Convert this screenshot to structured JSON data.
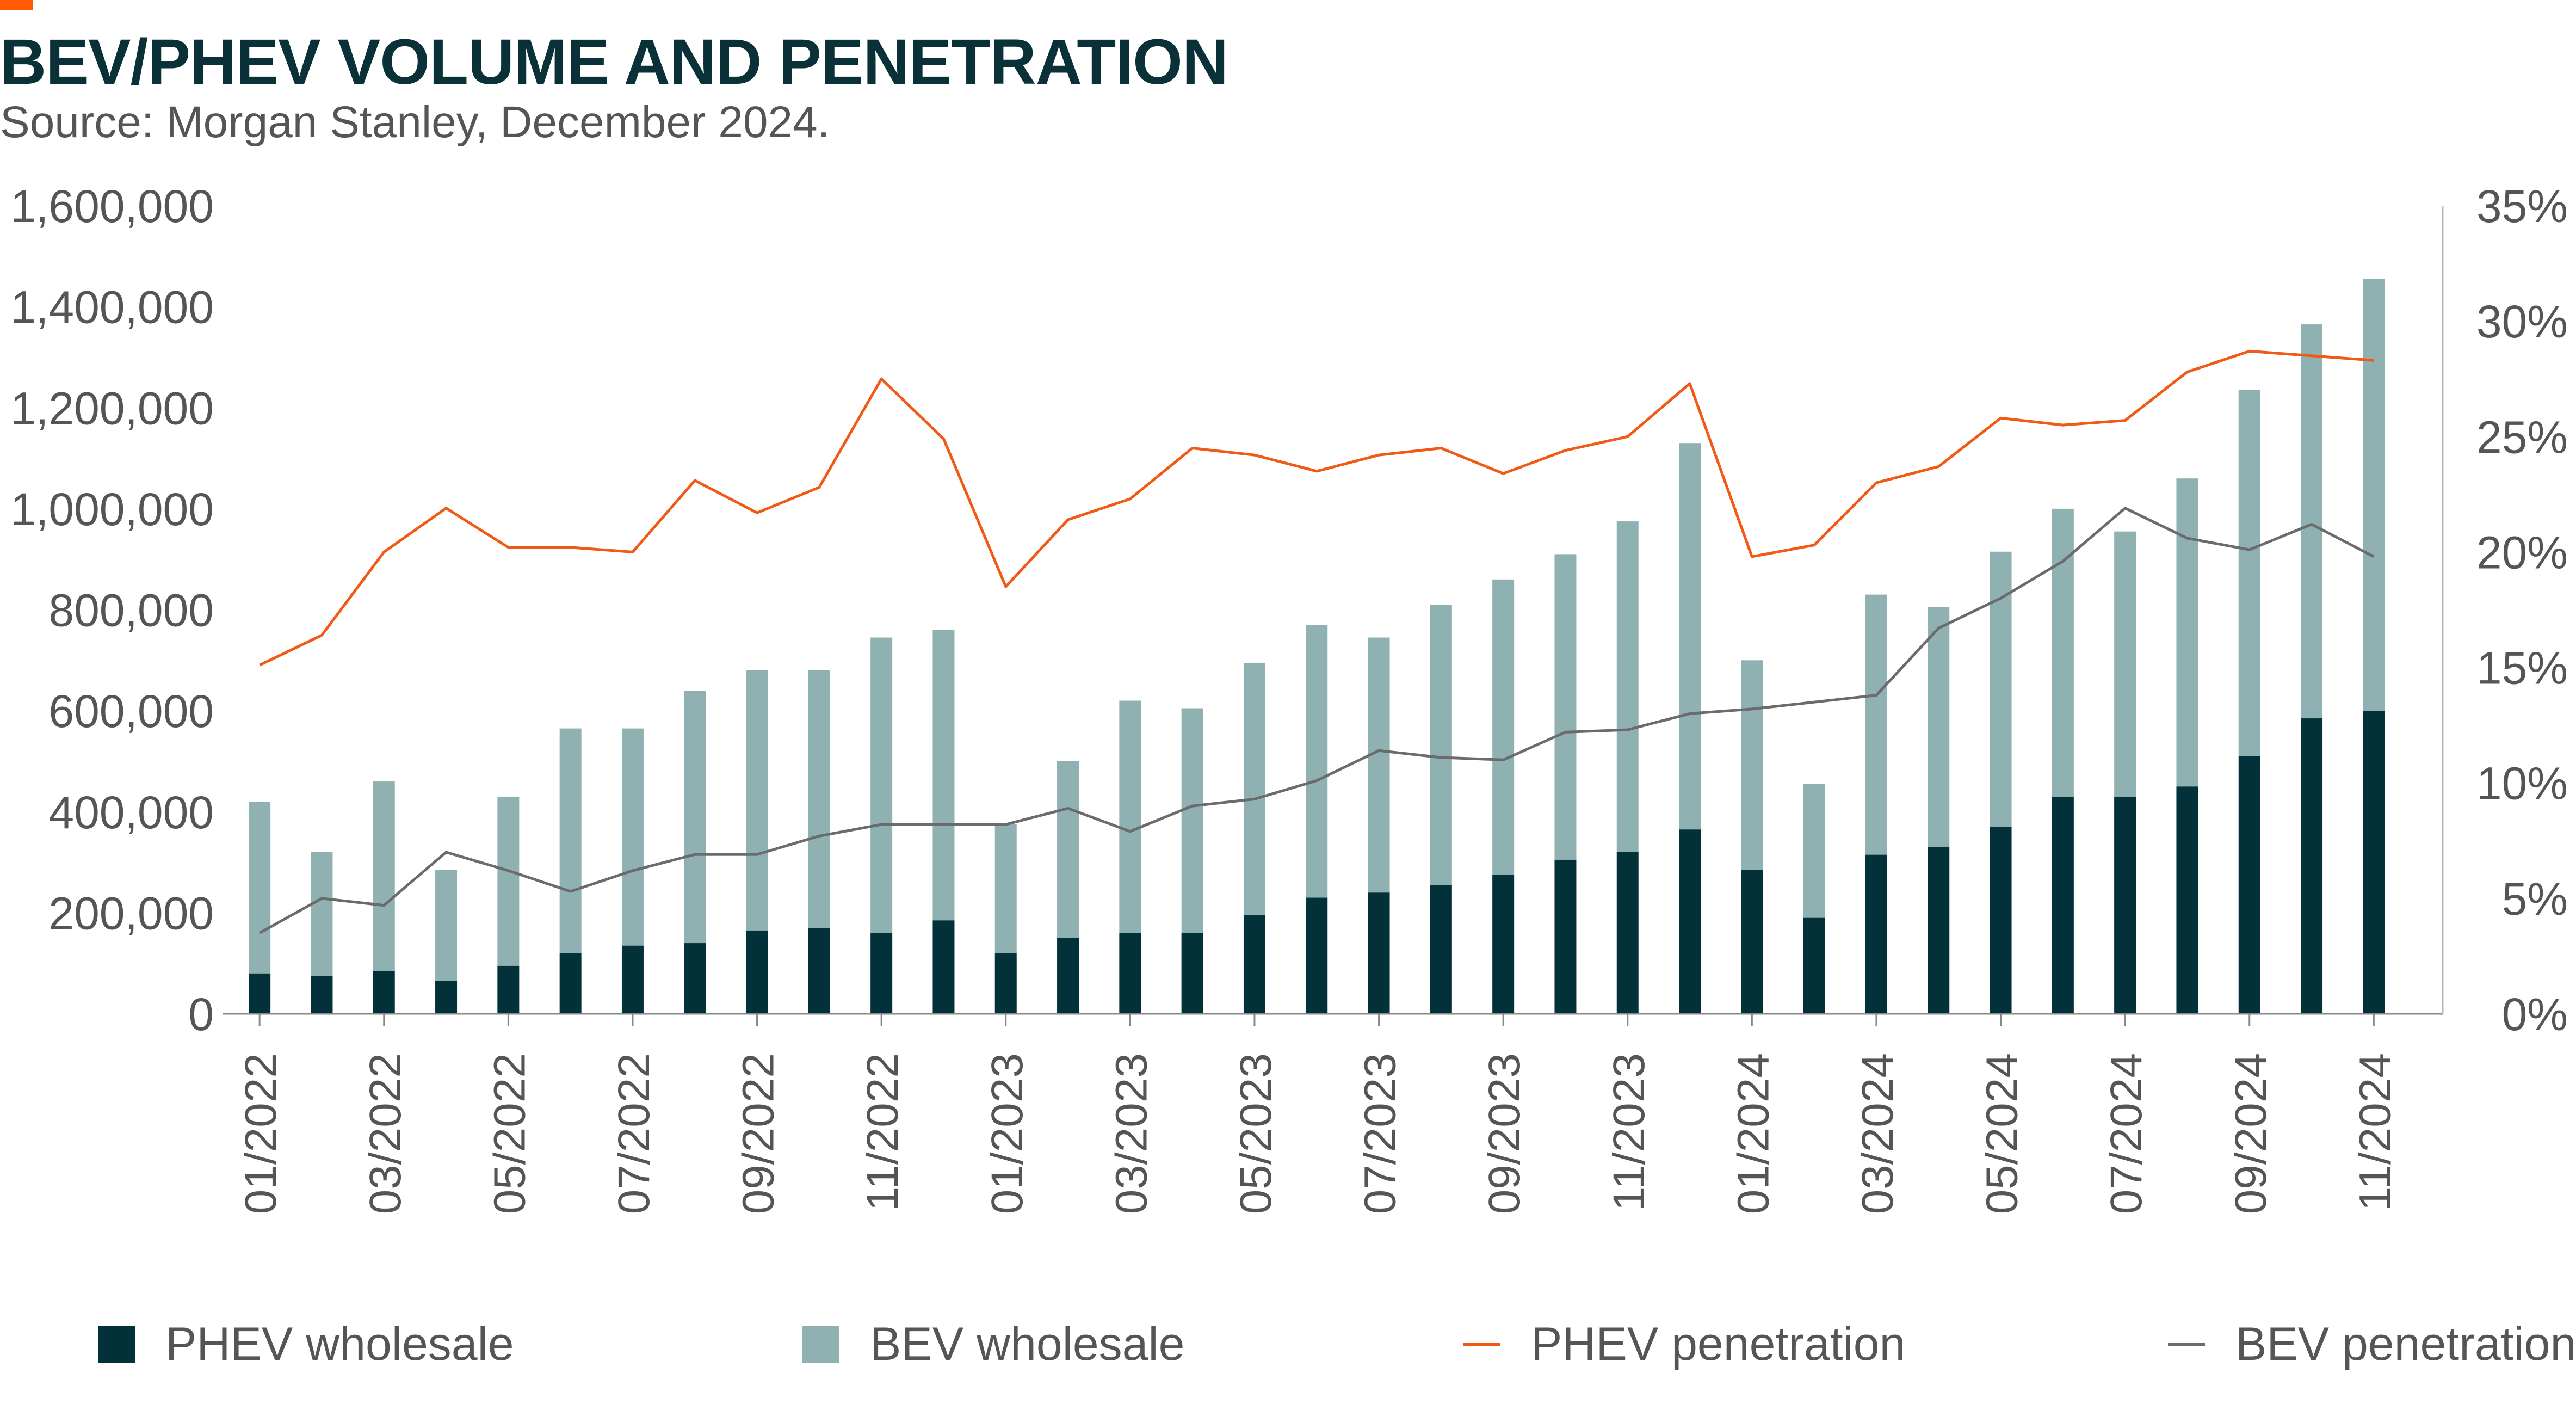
{
  "title": "BEV/PHEV VOLUME AND PENETRATION",
  "subtitle": "Source: Morgan Stanley, December 2024.",
  "colors": {
    "accent": "#ff5a00",
    "title": "#0a3138",
    "phev_bar": "#03313a",
    "bev_bar": "#8fb1b2",
    "phev_line": "#f05a14",
    "bev_line": "#6b6b6b",
    "text": "#555555"
  },
  "legend": {
    "phev_wholesale": "PHEV wholesale",
    "bev_wholesale": "BEV wholesale",
    "phev_penetration": "PHEV penetration",
    "bev_penetration": "BEV penetration"
  },
  "chart_data": {
    "type": "bar",
    "stacked": true,
    "categories": [
      "01/2022",
      "02/2022",
      "03/2022",
      "04/2022",
      "05/2022",
      "06/2022",
      "07/2022",
      "08/2022",
      "09/2022",
      "10/2022",
      "11/2022",
      "12/2022",
      "01/2023",
      "02/2023",
      "03/2023",
      "04/2023",
      "05/2023",
      "06/2023",
      "07/2023",
      "08/2023",
      "09/2023",
      "10/2023",
      "11/2023",
      "12/2023",
      "01/2024",
      "02/2024",
      "03/2024",
      "04/2024",
      "05/2024",
      "06/2024",
      "07/2024",
      "08/2024",
      "09/2024",
      "10/2024",
      "11/2024"
    ],
    "x_tick_labels": [
      "01/2022",
      "03/2022",
      "05/2022",
      "07/2022",
      "09/2022",
      "11/2022",
      "01/2023",
      "03/2023",
      "05/2023",
      "07/2023",
      "09/2023",
      "11/2023",
      "01/2024",
      "03/2024",
      "05/2024",
      "07/2024",
      "09/2024",
      "11/2024"
    ],
    "y_left": {
      "ylim": [
        0,
        1600000
      ],
      "ticks": [
        "0",
        "200,000",
        "400,000",
        "600,000",
        "800,000",
        "1,000,000",
        "1,200,000",
        "1,400,000",
        "1,600,000"
      ]
    },
    "y_right": {
      "ylim": [
        0,
        35
      ],
      "ticks": [
        "0%",
        "5%",
        "10%",
        "15%",
        "20%",
        "25%",
        "30%",
        "35%"
      ]
    },
    "series": [
      {
        "name": "PHEV wholesale",
        "kind": "bar",
        "axis": "left",
        "values": [
          80000,
          75000,
          85000,
          65000,
          95000,
          120000,
          135000,
          140000,
          165000,
          170000,
          160000,
          185000,
          120000,
          150000,
          160000,
          160000,
          195000,
          230000,
          240000,
          255000,
          275000,
          305000,
          320000,
          365000,
          285000,
          190000,
          315000,
          330000,
          370000,
          430000,
          430000,
          450000,
          510000,
          585000,
          600000
        ]
      },
      {
        "name": "BEV wholesale",
        "kind": "bar",
        "axis": "left",
        "values": [
          340000,
          245000,
          375000,
          220000,
          335000,
          445000,
          430000,
          500000,
          515000,
          510000,
          585000,
          575000,
          255000,
          350000,
          460000,
          445000,
          500000,
          540000,
          505000,
          555000,
          585000,
          605000,
          655000,
          765000,
          415000,
          265000,
          515000,
          475000,
          545000,
          570000,
          525000,
          610000,
          725000,
          780000,
          855000
        ]
      },
      {
        "name": "PHEV penetration",
        "kind": "line",
        "axis": "right",
        "values": [
          15.1,
          16.4,
          20.0,
          21.9,
          20.2,
          20.2,
          20.0,
          23.1,
          21.7,
          22.8,
          27.5,
          24.9,
          18.5,
          21.4,
          22.3,
          24.5,
          24.2,
          23.5,
          24.2,
          24.5,
          23.4,
          24.4,
          25.0,
          27.3,
          19.8,
          20.3,
          23.0,
          23.7,
          25.8,
          25.5,
          25.7,
          27.8,
          28.7,
          28.5,
          28.3
        ]
      },
      {
        "name": "BEV penetration",
        "kind": "line",
        "axis": "right",
        "values": [
          3.5,
          5.0,
          4.7,
          7.0,
          6.2,
          5.3,
          6.2,
          6.9,
          6.9,
          7.7,
          8.2,
          8.2,
          8.2,
          8.9,
          7.9,
          9.0,
          9.3,
          10.1,
          11.4,
          11.1,
          11.0,
          12.2,
          12.3,
          13.0,
          13.2,
          13.5,
          13.8,
          16.7,
          18.0,
          19.6,
          21.9,
          20.6,
          20.1,
          21.2,
          19.8
        ]
      }
    ],
    "legend_position": "bottom",
    "grid": false
  }
}
